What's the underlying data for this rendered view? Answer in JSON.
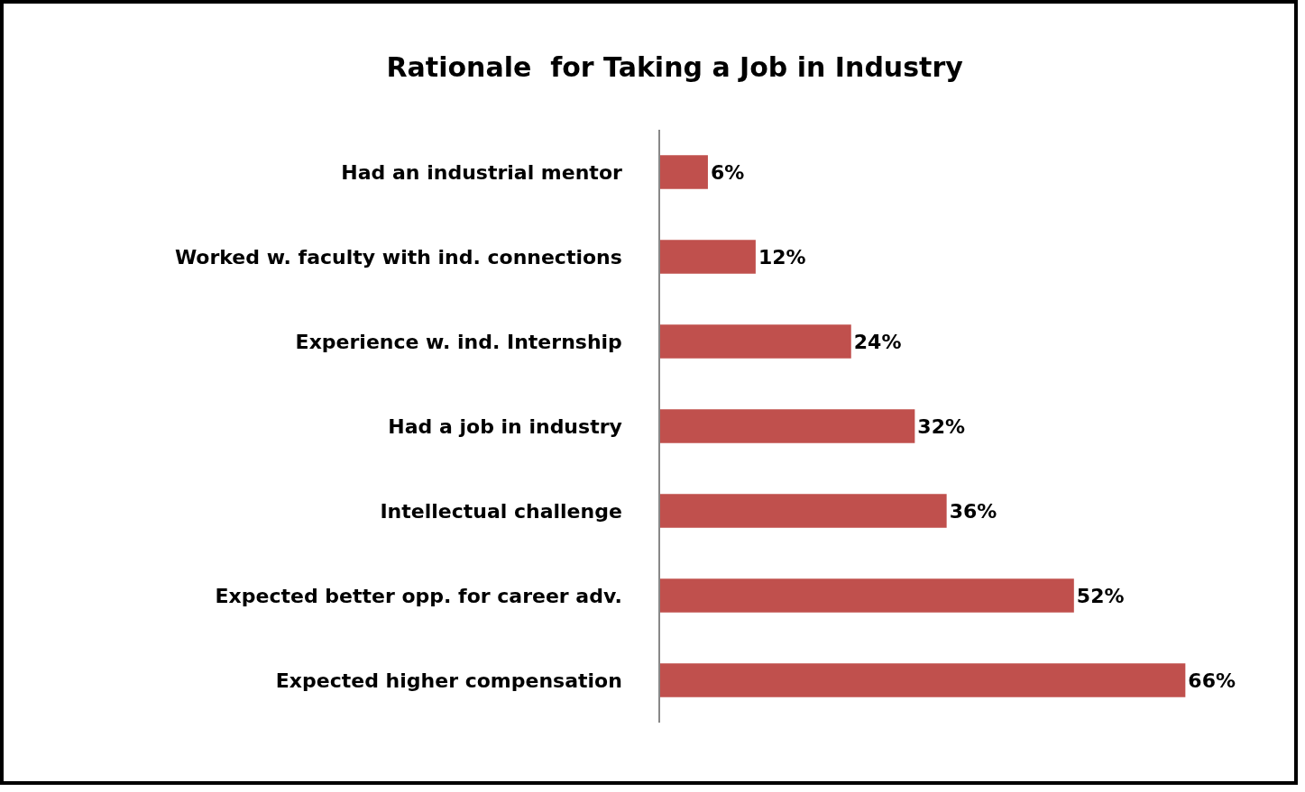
{
  "chart_data": {
    "type": "bar",
    "orientation": "horizontal",
    "title": "Rationale  for Taking a Job in Industry",
    "categories": [
      "Had an industrial mentor",
      "Worked w. faculty with ind. connections",
      "Experience w. ind. Internship",
      "Had a job in industry",
      "Intellectual challenge",
      "Expected better opp. for career adv.",
      "Expected higher compensation"
    ],
    "values": [
      6,
      12,
      24,
      32,
      36,
      52,
      66
    ],
    "value_labels": [
      "6%",
      "12%",
      "24%",
      "32%",
      "36%",
      "52%",
      "66%"
    ],
    "color": "#c0504d",
    "grid": false,
    "legend": false
  }
}
